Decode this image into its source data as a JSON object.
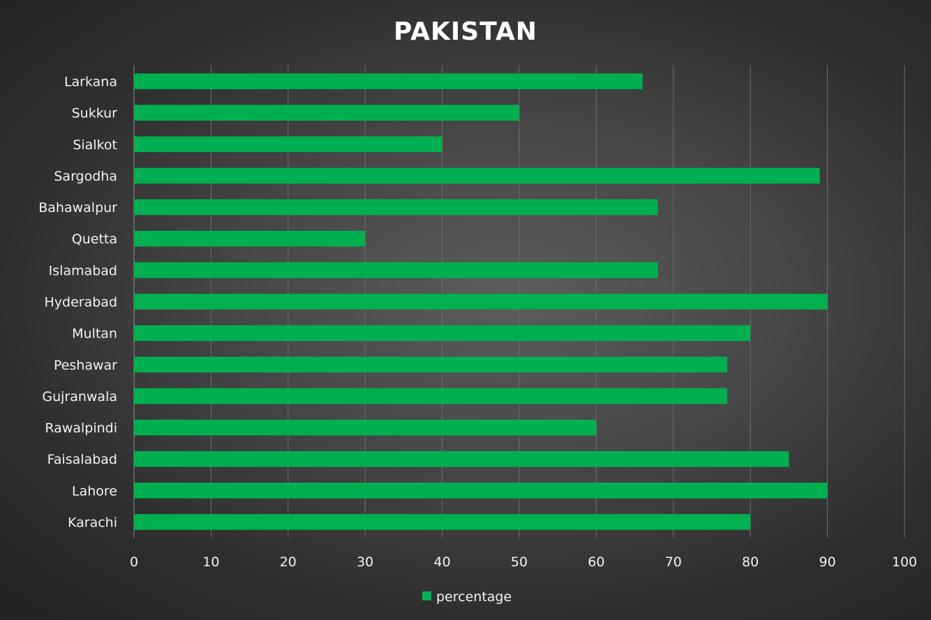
{
  "chart_data": {
    "type": "bar",
    "orientation": "horizontal",
    "title": "PAKISTAN",
    "categories": [
      "Karachi",
      "Lahore",
      "Faisalabad",
      "Rawalpindi",
      "Gujranwala",
      "Peshawar",
      "Multan",
      "Hyderabad",
      "Islamabad",
      "Quetta",
      "Bahawalpur",
      "Sargodha",
      "Sialkot",
      "Sukkur",
      "Larkana"
    ],
    "series": [
      {
        "name": "percentage",
        "values": [
          80,
          90,
          85,
          60,
          77,
          77,
          80,
          90,
          68,
          30,
          68,
          89,
          40,
          50,
          66
        ]
      }
    ],
    "xlim": [
      0,
      100
    ],
    "xticks": [
      0,
      10,
      20,
      30,
      40,
      50,
      60,
      70,
      80,
      90,
      100
    ],
    "xlabel": "",
    "ylabel": "",
    "grid": "vertical",
    "legend": "bottom-center",
    "colors": {
      "bar": "#00b050",
      "grid": "#6e6e6e",
      "text": "#f2f2f2",
      "title": "#ffffff"
    }
  }
}
